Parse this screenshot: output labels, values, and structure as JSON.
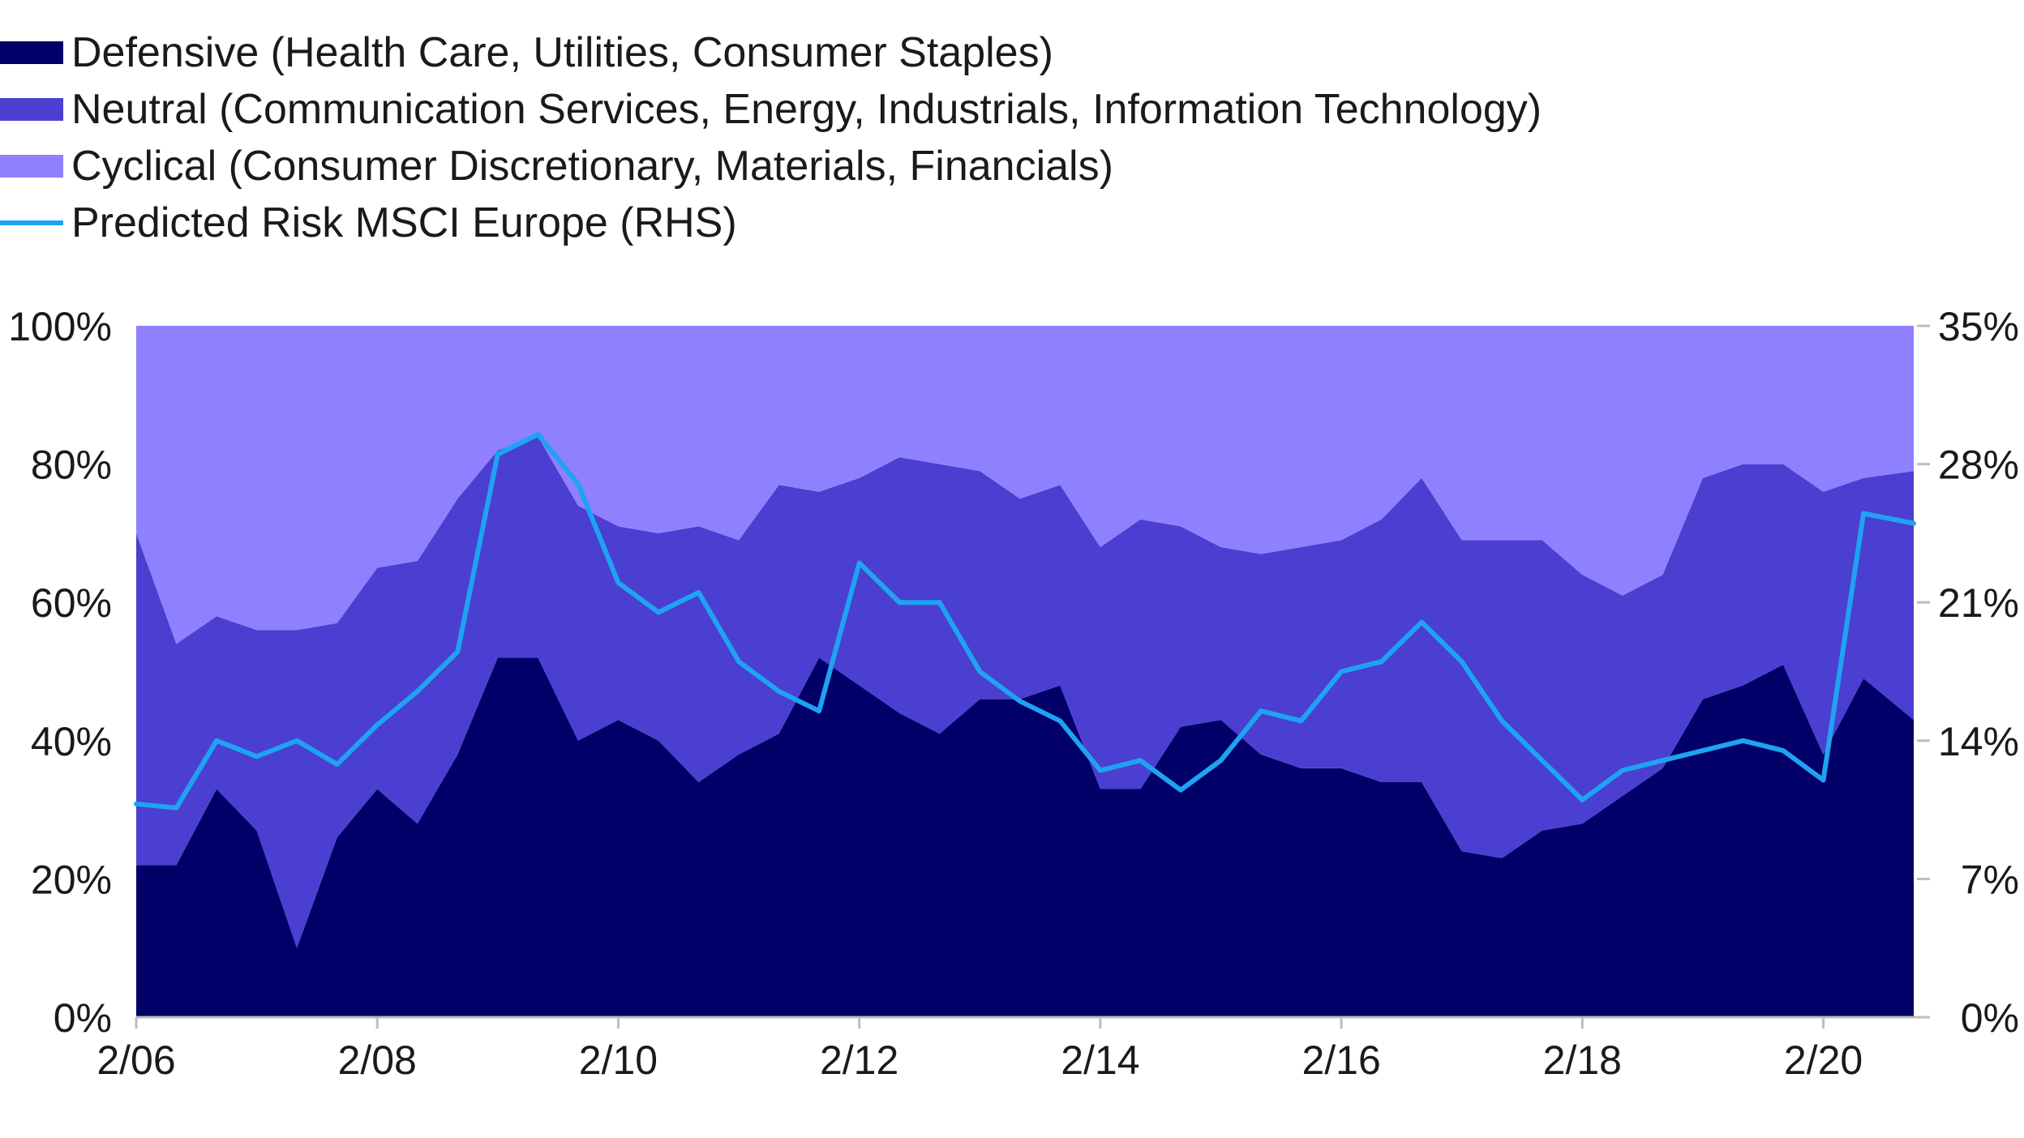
{
  "legend": [
    {
      "label": "Defensive (Health Care, Utilities, Consumer Staples)",
      "color": "#000068",
      "kind": "area"
    },
    {
      "label": "Neutral (Communication Services, Energy, Industrials, Information Technology)",
      "color": "#4A3FD1",
      "kind": "area"
    },
    {
      "label": "Cyclical (Consumer Discretionary, Materials, Financials)",
      "color": "#8F80FF",
      "kind": "area"
    },
    {
      "label": "Predicted Risk MSCI Europe (RHS)",
      "color": "#1EA3F2",
      "kind": "line"
    }
  ],
  "chart_data": {
    "type": "area",
    "stacked": true,
    "x_start": "2006-02",
    "x_end": "2020-11",
    "x_ticks": [
      "2/06",
      "2/08",
      "2/10",
      "2/12",
      "2/14",
      "2/16",
      "2/18",
      "2/20"
    ],
    "y_left_ticks": [
      "0%",
      "20%",
      "40%",
      "60%",
      "80%",
      "100%"
    ],
    "y_right_ticks": [
      "0%",
      "7%",
      "14%",
      "21%",
      "28%",
      "35%"
    ],
    "ylim_left": [
      0,
      100
    ],
    "ylim_right": [
      0,
      35
    ],
    "x": [
      "2006-02",
      "2006-06",
      "2006-10",
      "2007-02",
      "2007-06",
      "2007-10",
      "2008-02",
      "2008-06",
      "2008-10",
      "2009-02",
      "2009-06",
      "2009-10",
      "2010-02",
      "2010-06",
      "2010-10",
      "2011-02",
      "2011-06",
      "2011-10",
      "2012-02",
      "2012-06",
      "2012-10",
      "2013-02",
      "2013-06",
      "2013-10",
      "2014-02",
      "2014-06",
      "2014-10",
      "2015-02",
      "2015-06",
      "2015-10",
      "2016-02",
      "2016-06",
      "2016-10",
      "2017-02",
      "2017-06",
      "2017-10",
      "2018-02",
      "2018-06",
      "2018-10",
      "2019-02",
      "2019-06",
      "2019-10",
      "2020-02",
      "2020-06",
      "2020-11"
    ],
    "series": [
      {
        "name": "Defensive (Health Care, Utilities, Consumer Staples)",
        "axis": "left",
        "values": [
          22,
          22,
          33,
          27,
          10,
          26,
          33,
          28,
          38,
          52,
          52,
          40,
          43,
          40,
          34,
          38,
          41,
          52,
          48,
          44,
          41,
          46,
          46,
          48,
          33,
          33,
          42,
          43,
          38,
          36,
          36,
          34,
          34,
          24,
          23,
          27,
          28,
          32,
          36,
          46,
          48,
          51,
          38,
          49,
          43
        ]
      },
      {
        "name": "Neutral (Communication Services, Energy, Industrials, Information Technology)",
        "axis": "left",
        "values": [
          48,
          32,
          25,
          29,
          46,
          31,
          32,
          38,
          37,
          30,
          32,
          34,
          28,
          30,
          37,
          31,
          36,
          24,
          30,
          37,
          39,
          33,
          29,
          29,
          35,
          39,
          29,
          25,
          29,
          32,
          33,
          38,
          44,
          45,
          46,
          42,
          36,
          29,
          28,
          32,
          32,
          29,
          38,
          29,
          36
        ]
      },
      {
        "name": "Cyclical (Consumer Discretionary, Materials, Financials)",
        "axis": "left",
        "values": [
          30,
          46,
          42,
          44,
          44,
          43,
          35,
          34,
          25,
          18,
          16,
          26,
          29,
          30,
          29,
          31,
          23,
          24,
          22,
          19,
          20,
          21,
          25,
          23,
          32,
          28,
          29,
          32,
          33,
          32,
          31,
          28,
          22,
          31,
          31,
          31,
          36,
          39,
          36,
          22,
          20,
          20,
          24,
          22,
          21
        ]
      },
      {
        "name": "Predicted Risk MSCI Europe (RHS)",
        "axis": "right",
        "values": [
          10.8,
          10.6,
          14.0,
          13.2,
          14.0,
          12.8,
          14.8,
          16.5,
          18.5,
          28.5,
          29.5,
          27.0,
          22.0,
          20.5,
          21.5,
          18.0,
          16.5,
          15.5,
          23.0,
          21.0,
          21.0,
          17.5,
          16.0,
          15.0,
          12.5,
          13.0,
          11.5,
          13.0,
          15.5,
          15.0,
          17.5,
          18.0,
          20.0,
          18.0,
          15.0,
          13.0,
          11.0,
          12.5,
          13.0,
          13.5,
          14.0,
          13.5,
          12.0,
          25.5,
          25.0
        ]
      }
    ]
  }
}
